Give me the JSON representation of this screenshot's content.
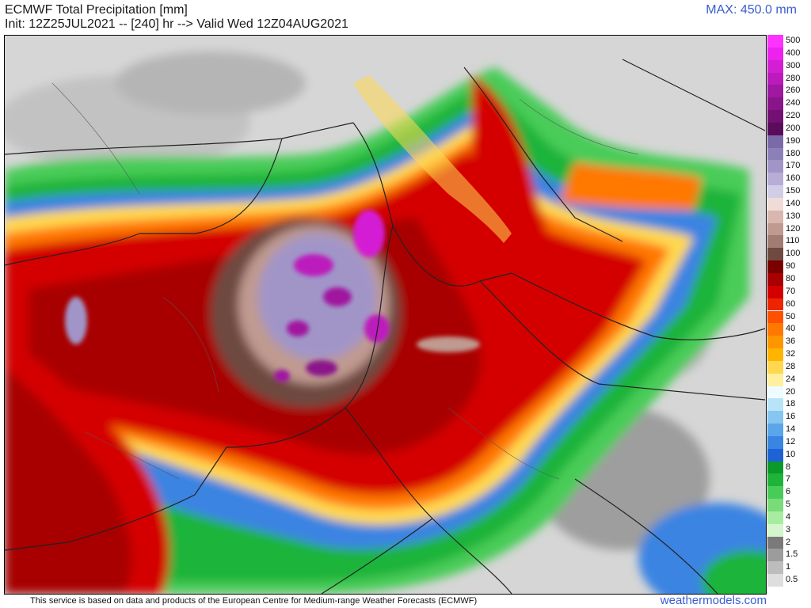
{
  "header": {
    "title": "ECMWF Total Precipitation [mm]",
    "subtitle": "Init: 12Z25JUL2021 -- [240] hr --> Valid Wed 12Z04AUG2021",
    "max_label": "MAX: 450.0 mm"
  },
  "legend": {
    "entries": [
      {
        "label": "500",
        "color": "#ff33ff"
      },
      {
        "label": "400",
        "color": "#ee22ee"
      },
      {
        "label": "300",
        "color": "#d41ed4"
      },
      {
        "label": "280",
        "color": "#bb1bbb"
      },
      {
        "label": "260",
        "color": "#a0189f"
      },
      {
        "label": "240",
        "color": "#8a1489"
      },
      {
        "label": "220",
        "color": "#741071"
      },
      {
        "label": "200",
        "color": "#5a0c5a"
      },
      {
        "label": "190",
        "color": "#7a6aa8"
      },
      {
        "label": "180",
        "color": "#8c80b8"
      },
      {
        "label": "170",
        "color": "#a195c8"
      },
      {
        "label": "160",
        "color": "#b7aed6"
      },
      {
        "label": "150",
        "color": "#d2cde6"
      },
      {
        "label": "140",
        "color": "#f0dcd6"
      },
      {
        "label": "130",
        "color": "#d9b7ae"
      },
      {
        "label": "120",
        "color": "#c09a90"
      },
      {
        "label": "110",
        "color": "#a07c72"
      },
      {
        "label": "100",
        "color": "#6e4a40"
      },
      {
        "label": "90",
        "color": "#7a0000"
      },
      {
        "label": "80",
        "color": "#a80000"
      },
      {
        "label": "70",
        "color": "#d40000"
      },
      {
        "label": "60",
        "color": "#ee2400"
      },
      {
        "label": "50",
        "color": "#ff5000"
      },
      {
        "label": "40",
        "color": "#ff7800"
      },
      {
        "label": "36",
        "color": "#ff9600"
      },
      {
        "label": "32",
        "color": "#ffb400"
      },
      {
        "label": "28",
        "color": "#ffd850"
      },
      {
        "label": "24",
        "color": "#fff0a0"
      },
      {
        "label": "20",
        "color": "#f0fbff"
      },
      {
        "label": "18",
        "color": "#b8e4f8"
      },
      {
        "label": "16",
        "color": "#86c6f0"
      },
      {
        "label": "14",
        "color": "#5aa6ea"
      },
      {
        "label": "12",
        "color": "#3a84e2"
      },
      {
        "label": "10",
        "color": "#1e62d6"
      },
      {
        "label": "8",
        "color": "#0a9a2a"
      },
      {
        "label": "7",
        "color": "#1eb43a"
      },
      {
        "label": "6",
        "color": "#48cc58"
      },
      {
        "label": "5",
        "color": "#78dc78"
      },
      {
        "label": "4",
        "color": "#a8eca0"
      },
      {
        "label": "3",
        "color": "#d4f6cc"
      },
      {
        "label": "2",
        "color": "#7a7a7a"
      },
      {
        "label": "1.5",
        "color": "#9c9c9c"
      },
      {
        "label": "1",
        "color": "#bdbdbd"
      },
      {
        "label": "0.5",
        "color": "#dedede"
      }
    ]
  },
  "footer": {
    "credit": "This service is based on data and products of the European Centre for Medium-range Weather Forecasts (ECMWF)",
    "brand": "weathermodels.com"
  }
}
